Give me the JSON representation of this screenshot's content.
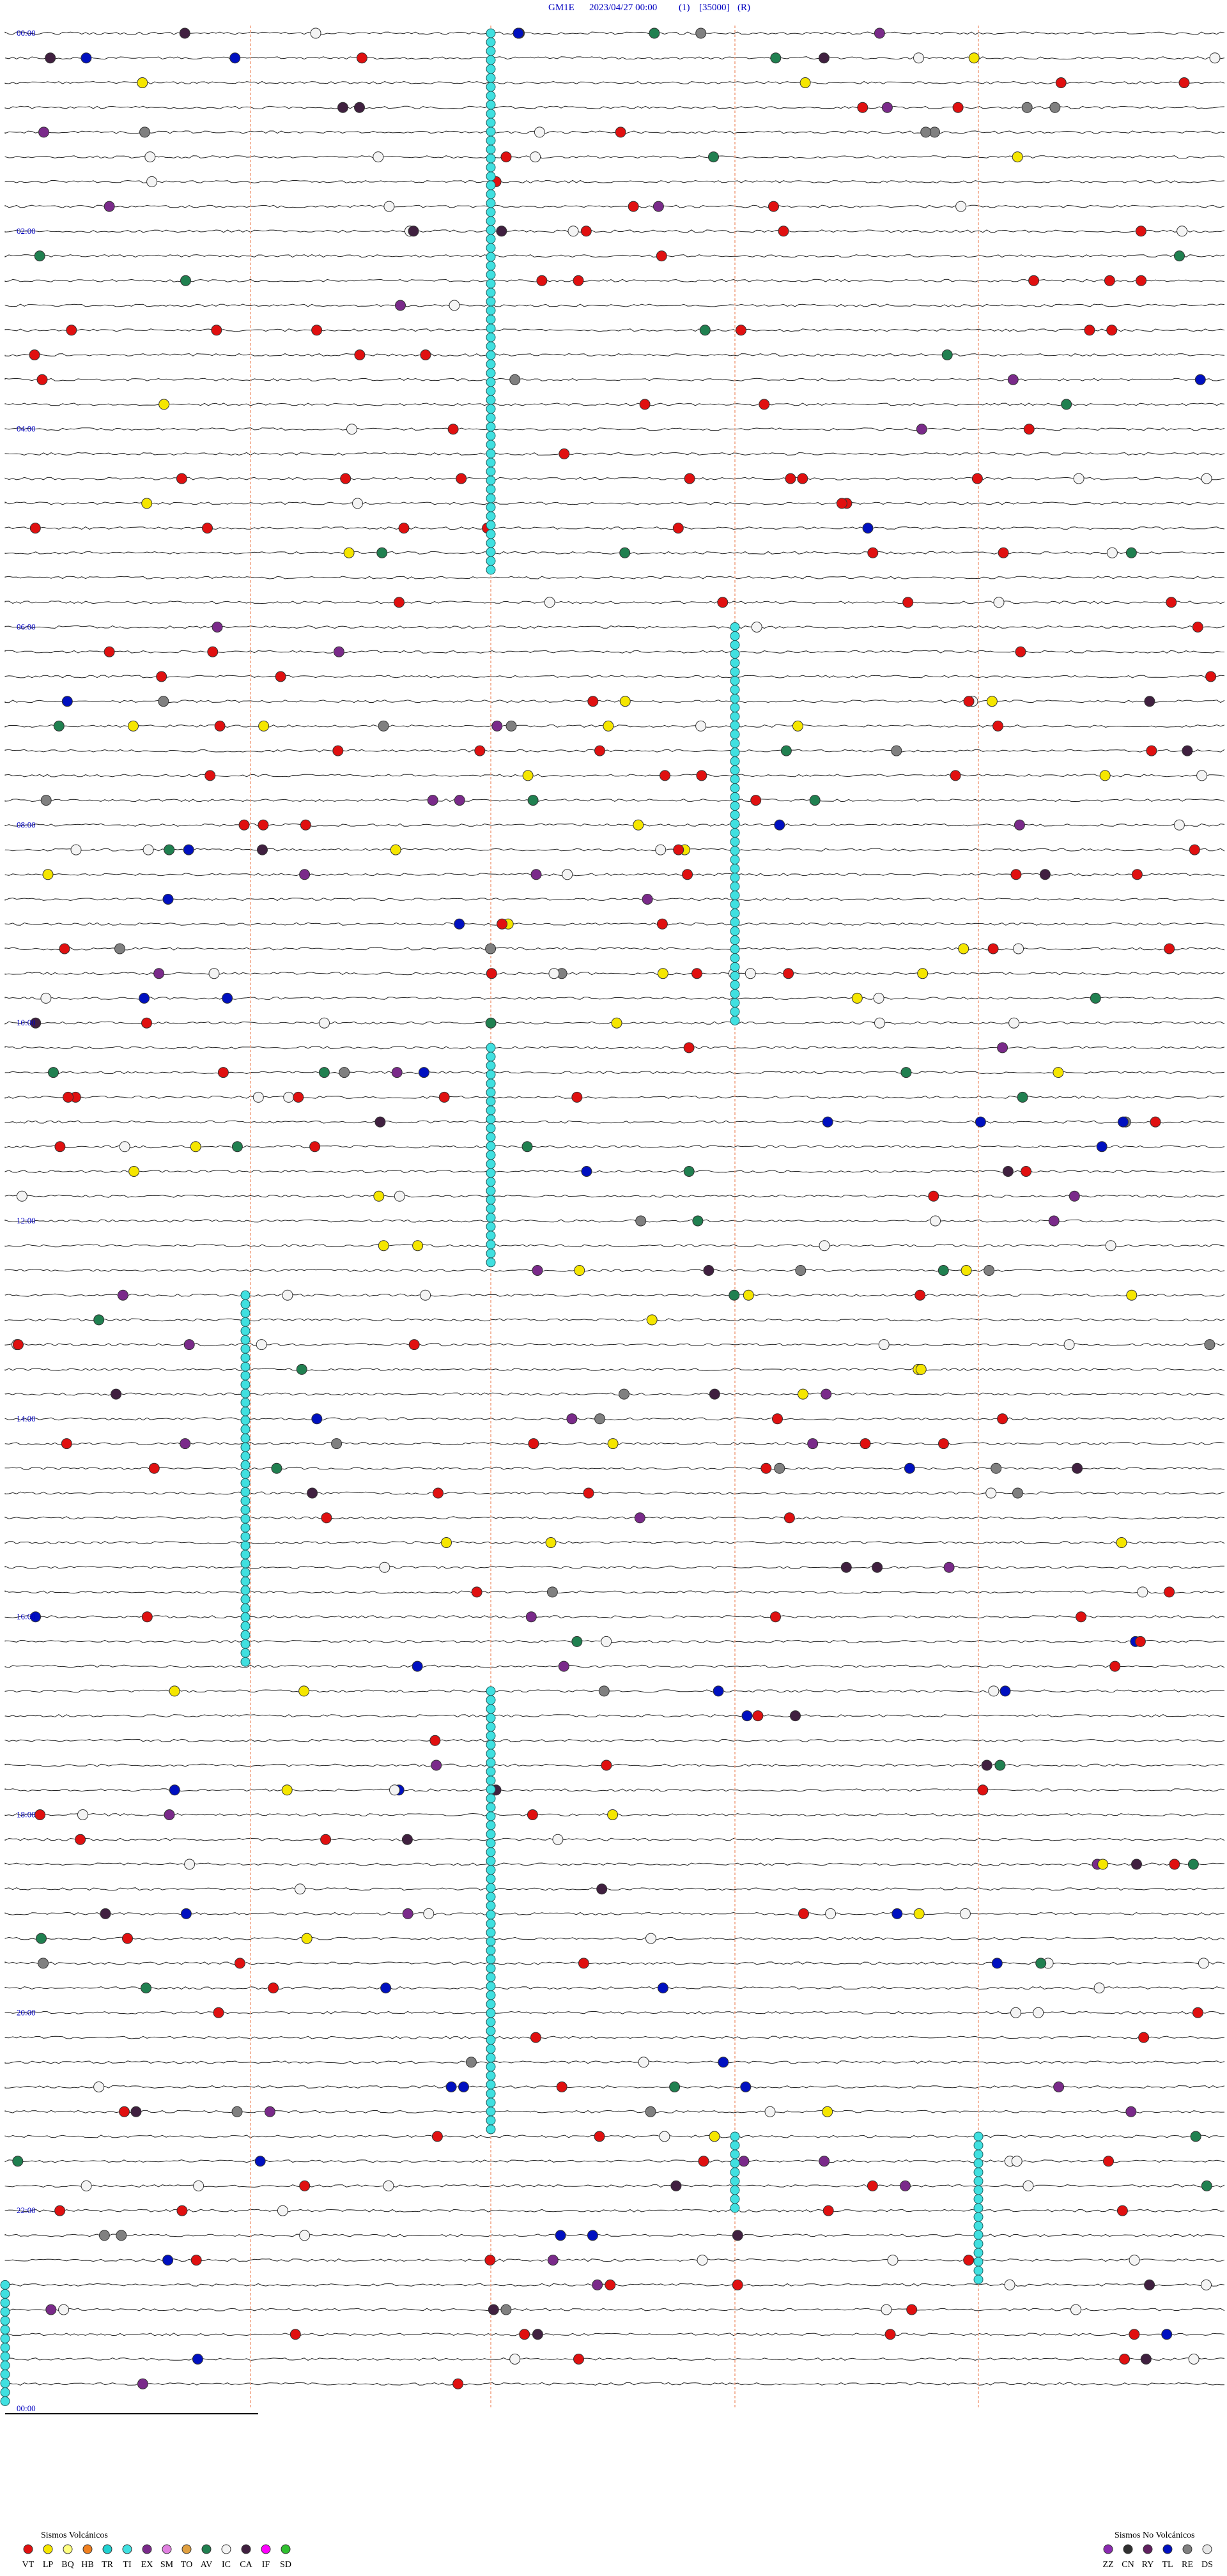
{
  "header": {
    "station": "GM1E",
    "datetime": "2023/04/27 00:00",
    "channel": "(1)",
    "scale": "[35000]",
    "mode": "(R)"
  },
  "time_labels": [
    "00:00",
    "02:00",
    "04:00",
    "06:00",
    "08:00",
    "10:00",
    "12:00",
    "14:00",
    "16:00",
    "18:00",
    "20:00",
    "22:00",
    "00:00"
  ],
  "legend_volcanic": {
    "title": "Sismos Volcánicos",
    "items": [
      {
        "code": "VT",
        "color": "#e01010"
      },
      {
        "code": "LP",
        "color": "#f5e600"
      },
      {
        "code": "BQ",
        "color": "#ffff80"
      },
      {
        "code": "HB",
        "color": "#f08020"
      },
      {
        "code": "TR",
        "color": "#20d0d0"
      },
      {
        "code": "TI",
        "color": "#40e0e0"
      },
      {
        "code": "EX",
        "color": "#7a2a8a"
      },
      {
        "code": "SM",
        "color": "#e080e0"
      },
      {
        "code": "TO",
        "color": "#e0a040"
      },
      {
        "code": "AV",
        "color": "#208050"
      },
      {
        "code": "IC",
        "color": "#f4f4f4"
      },
      {
        "code": "CA",
        "color": "#402040"
      },
      {
        "code": "IF",
        "color": "#ff00ff"
      },
      {
        "code": "SD",
        "color": "#30c030"
      }
    ]
  },
  "legend_non_volcanic": {
    "title": "Sismos No Volcánicos",
    "items": [
      {
        "code": "ZZ",
        "color": "#8a2ab0"
      },
      {
        "code": "CN",
        "color": "#303030"
      },
      {
        "code": "RY",
        "color": "#602060"
      },
      {
        "code": "TL",
        "color": "#0010c0"
      },
      {
        "code": "RE",
        "color": "#808080"
      },
      {
        "code": "DS",
        "color": "#e8e8e8"
      }
    ]
  }
}
